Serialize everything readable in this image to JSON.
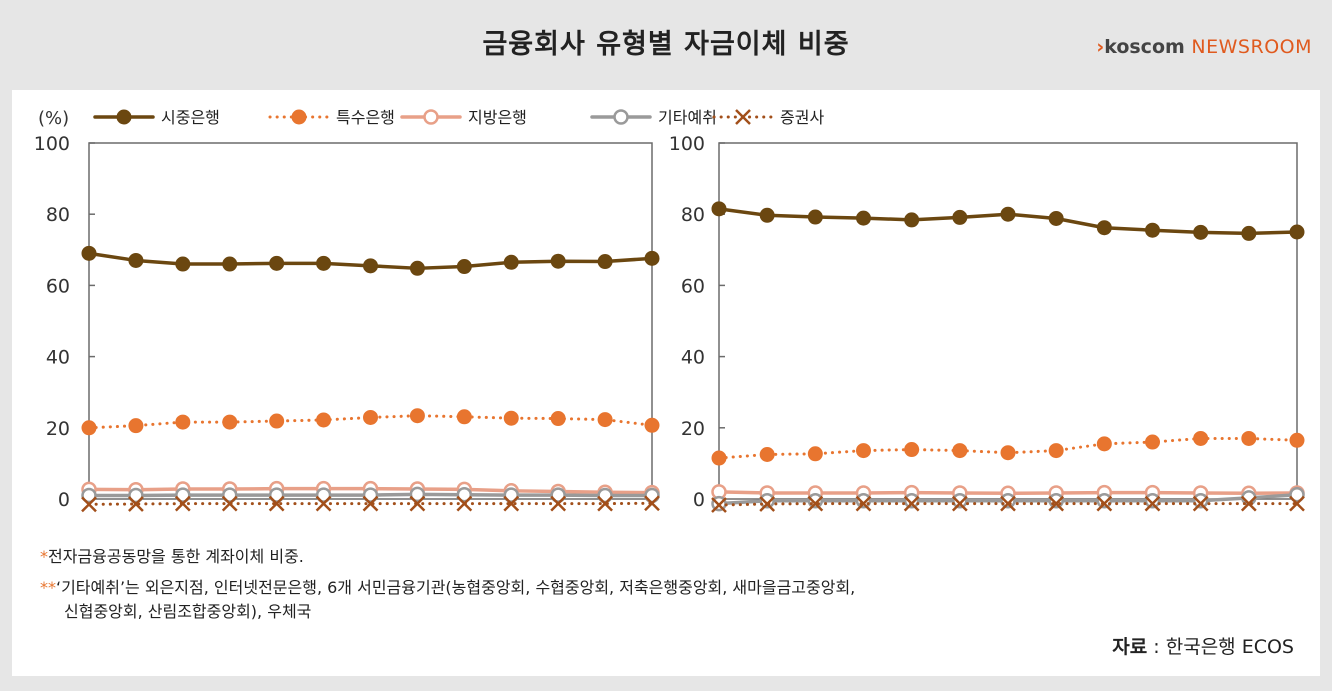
{
  "header": {
    "title": "금융회사 유형별 자금이체 비중",
    "brand_arrow": "›",
    "brand_name": "koscom",
    "brand_suffix": "NEWSROOM"
  },
  "colors": {
    "시중은행": "#6b4710",
    "특수은행": "#e8752f",
    "지방은행": "#e8a088",
    "기타예취": "#9a9a9a",
    "증권사": "#a24f1a"
  },
  "chart_data": [
    {
      "type": "line",
      "ylabel": "(%)",
      "ylim": [
        0,
        100
      ],
      "yticks": [
        "0",
        "20",
        "40",
        "60",
        "80",
        "100"
      ],
      "legend": "top",
      "grid": false,
      "series": [
        {
          "name": "시중은행",
          "style": "solid-filled",
          "values": [
            69,
            67,
            66,
            66,
            66.2,
            66.2,
            65.5,
            64.8,
            65.3,
            66.5,
            66.8,
            66.7,
            67.6
          ]
        },
        {
          "name": "특수은행",
          "style": "dotted-filled",
          "values": [
            20,
            20.6,
            21.6,
            21.6,
            21.9,
            22.2,
            22.9,
            23.4,
            23.1,
            22.7,
            22.6,
            22.3,
            20.7
          ]
        },
        {
          "name": "지방은행",
          "style": "solid-hollow",
          "values": [
            2.7,
            2.6,
            2.8,
            2.8,
            2.9,
            2.9,
            2.9,
            2.8,
            2.7,
            2.3,
            2.1,
            1.9,
            1.8
          ]
        },
        {
          "name": "기타예취",
          "style": "solid-hollow",
          "values": [
            1,
            1,
            1.1,
            1.1,
            1.1,
            1.1,
            1.1,
            1.3,
            1.2,
            1.1,
            1.1,
            1,
            1
          ]
        },
        {
          "name": "증권사",
          "style": "dotted-x",
          "values": [
            -1.5,
            -1.4,
            -1.3,
            -1.3,
            -1.3,
            -1.3,
            -1.3,
            -1.3,
            -1.3,
            -1.3,
            -1.3,
            -1.3,
            -1.2
          ]
        }
      ]
    },
    {
      "type": "line",
      "ylabel": "",
      "ylim": [
        0,
        100
      ],
      "yticks": [
        "0",
        "20",
        "40",
        "60",
        "80",
        "100"
      ],
      "legend": "none",
      "grid": false,
      "series": [
        {
          "name": "시중은행",
          "style": "solid-filled",
          "values": [
            81.5,
            79.7,
            79.2,
            78.9,
            78.4,
            79.1,
            80,
            78.8,
            76.2,
            75.5,
            74.9,
            74.6,
            75
          ]
        },
        {
          "name": "특수은행",
          "style": "dotted-filled",
          "values": [
            11.5,
            12.5,
            12.7,
            13.6,
            13.9,
            13.6,
            13,
            13.6,
            15.5,
            16,
            17,
            17,
            16.5
          ]
        },
        {
          "name": "지방은행",
          "style": "solid-hollow",
          "values": [
            2,
            1.7,
            1.7,
            1.7,
            1.8,
            1.7,
            1.6,
            1.7,
            1.8,
            1.8,
            1.7,
            1.6,
            1.7
          ]
        },
        {
          "name": "기타예취",
          "style": "solid-hollow",
          "values": [
            -1.3,
            -0.5,
            -0.5,
            -0.5,
            -0.5,
            -0.5,
            -0.5,
            -0.5,
            -0.5,
            -0.5,
            -0.5,
            0.3,
            1.2
          ]
        },
        {
          "name": "증권사",
          "style": "dotted-x",
          "values": [
            -1.7,
            -1.4,
            -1.3,
            -1.3,
            -1.3,
            -1.3,
            -1.3,
            -1.3,
            -1.3,
            -1.3,
            -1.3,
            -1.3,
            -1.3
          ]
        }
      ]
    }
  ],
  "notes": {
    "note1_mark": "*",
    "note1": "전자금융공동망을 통한 계좌이체 비중.",
    "note2_mark": "**",
    "note2": "‘기타예취’는 외은지점, 인터넷전문은행, 6개 서민금융기관(농협중앙회, 수협중앙회, 저축은행중앙회, 새마을금고중앙회,",
    "note2_cont": "신협중앙회, 산림조합중앙회), 우체국"
  },
  "source": {
    "label": "자료",
    "text": " : 한국은행 ECOS"
  }
}
